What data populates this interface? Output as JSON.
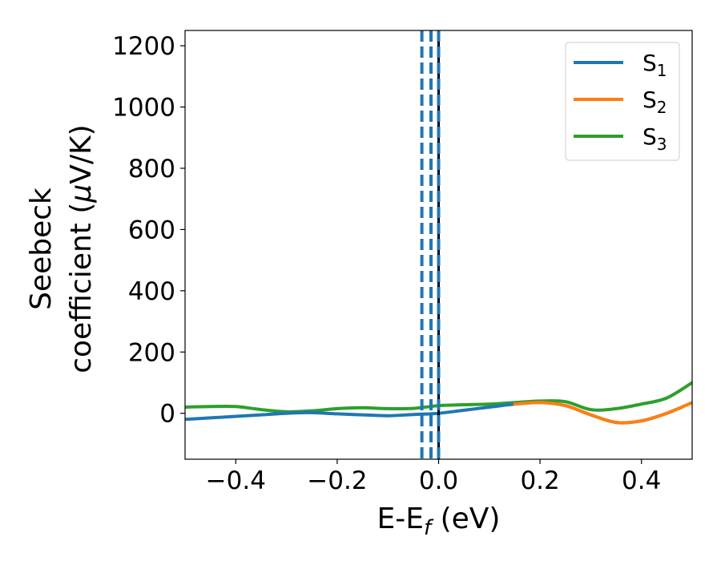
{
  "chart_data": {
    "type": "line",
    "title": "",
    "xlabel": "E-E",
    "xlabel_sub": "f",
    "xlabel_unit": " (eV)",
    "ylabel_line1": "Seebeck",
    "ylabel_line2": "coefficient  (",
    "ylabel_mu": "μ",
    "ylabel_unit": "V/K)",
    "xlim": [
      -0.5,
      0.5
    ],
    "ylim": [
      -150,
      1250
    ],
    "xticks": [
      -0.4,
      -0.2,
      0.0,
      0.2,
      0.4
    ],
    "xtick_labels": [
      "−0.4",
      "−0.2",
      "0.0",
      "0.2",
      "0.4"
    ],
    "yticks": [
      0,
      200,
      400,
      600,
      800,
      1000,
      1200
    ],
    "ytick_labels": [
      "0",
      "200",
      "400",
      "600",
      "800",
      "1000",
      "1200"
    ],
    "grid": false,
    "legend_position": "top-right",
    "series": [
      {
        "name": "S",
        "sub": "1",
        "color": "#1f77b4",
        "x": [
          -0.5,
          -0.45,
          -0.4,
          -0.35,
          -0.3,
          -0.25,
          -0.2,
          -0.15,
          -0.1,
          -0.05,
          0.0,
          0.05,
          0.1,
          0.15,
          0.2,
          0.25,
          0.3,
          0.35,
          0.4,
          0.45,
          0.5
        ],
        "y": [
          -20,
          -15,
          -10,
          -5,
          0,
          2,
          -2,
          -5,
          -8,
          -4,
          0,
          10,
          20,
          30,
          35,
          25,
          -5,
          -30,
          -25,
          0,
          35
        ]
      },
      {
        "name": "S",
        "sub": "2",
        "color": "#ff7f0e",
        "x": [
          0.15,
          0.2,
          0.25,
          0.3,
          0.35,
          0.4,
          0.45,
          0.5
        ],
        "y": [
          30,
          35,
          25,
          -5,
          -30,
          -25,
          0,
          35
        ]
      },
      {
        "name": "S",
        "sub": "3",
        "color": "#2ca02c",
        "x": [
          -0.5,
          -0.45,
          -0.4,
          -0.35,
          -0.3,
          -0.25,
          -0.2,
          -0.15,
          -0.1,
          -0.05,
          0.0,
          0.05,
          0.1,
          0.15,
          0.2,
          0.25,
          0.3,
          0.35,
          0.4,
          0.45,
          0.5
        ],
        "y": [
          20,
          22,
          22,
          12,
          5,
          8,
          15,
          18,
          15,
          16,
          25,
          28,
          30,
          35,
          40,
          38,
          12,
          15,
          30,
          50,
          100
        ]
      }
    ],
    "vlines": [
      {
        "x": -0.033,
        "style": "dashed",
        "color": "#1f77b4"
      },
      {
        "x": -0.015,
        "style": "dashed",
        "color": "#1f77b4"
      },
      {
        "x": 0.0,
        "style": "solid",
        "color": "#000000"
      },
      {
        "x": 0.0,
        "style": "dashed",
        "color": "#1f77b4"
      }
    ]
  }
}
